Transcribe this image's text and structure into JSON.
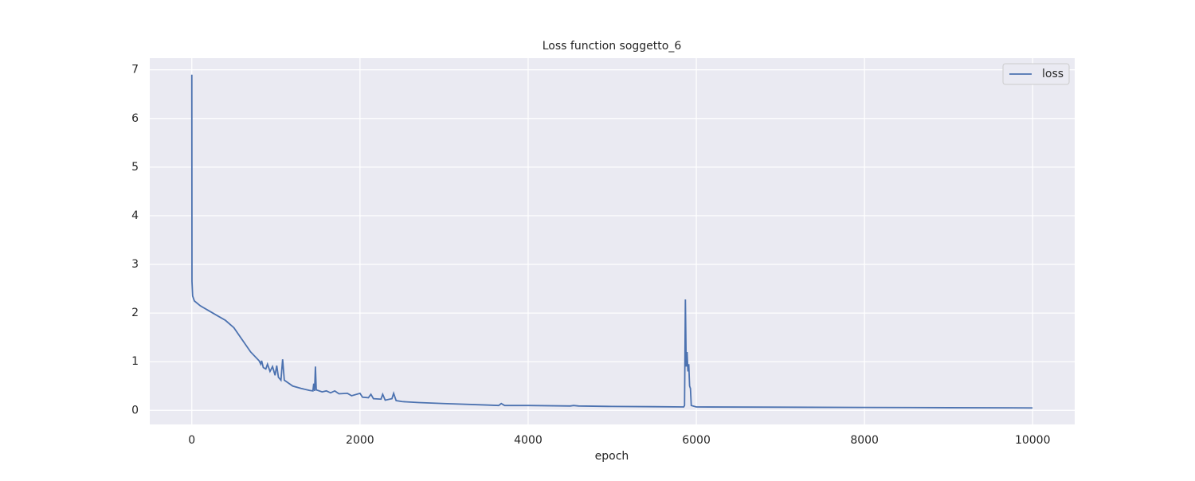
{
  "chart_data": {
    "type": "line",
    "title": "Loss function soggetto_6",
    "xlabel": "epoch",
    "x": [
      0,
      2,
      10,
      30,
      100,
      200,
      300,
      400,
      500,
      600,
      700,
      800,
      820,
      830,
      850,
      880,
      900,
      930,
      960,
      990,
      1010,
      1030,
      1060,
      1080,
      1100,
      1200,
      1300,
      1400,
      1440,
      1450,
      1460,
      1470,
      1480,
      1550,
      1600,
      1650,
      1700,
      1750,
      1850,
      1900,
      2000,
      2030,
      2100,
      2130,
      2160,
      2250,
      2270,
      2300,
      2380,
      2400,
      2430,
      2500,
      2700,
      3000,
      3500,
      3650,
      3680,
      3720,
      4000,
      4500,
      4540,
      4600,
      5000,
      5500,
      5850,
      5860,
      5870,
      5880,
      5890,
      5900,
      5910,
      5920,
      5930,
      5940,
      6000,
      7000,
      8000,
      9000,
      9999
    ],
    "series": [
      {
        "name": "loss",
        "color": "#4c72b0",
        "values": [
          6.9,
          2.65,
          2.35,
          2.25,
          2.15,
          2.05,
          1.95,
          1.85,
          1.7,
          1.45,
          1.2,
          1.02,
          0.95,
          1.02,
          0.88,
          0.85,
          0.95,
          0.8,
          0.9,
          0.72,
          0.92,
          0.68,
          0.62,
          1.05,
          0.62,
          0.5,
          0.45,
          0.41,
          0.4,
          0.55,
          0.4,
          0.9,
          0.42,
          0.38,
          0.4,
          0.36,
          0.4,
          0.34,
          0.35,
          0.3,
          0.35,
          0.27,
          0.26,
          0.33,
          0.24,
          0.23,
          0.33,
          0.21,
          0.24,
          0.35,
          0.2,
          0.18,
          0.16,
          0.14,
          0.11,
          0.1,
          0.14,
          0.1,
          0.1,
          0.09,
          0.1,
          0.09,
          0.08,
          0.075,
          0.07,
          0.1,
          2.28,
          0.9,
          1.2,
          0.8,
          0.95,
          0.5,
          0.45,
          0.1,
          0.07,
          0.065,
          0.06,
          0.055,
          0.05
        ]
      }
    ],
    "xlim": [
      -500,
      10500
    ],
    "ylim": [
      -0.29,
      7.24
    ],
    "xticks": [
      0,
      2000,
      4000,
      6000,
      8000,
      10000
    ],
    "yticks": [
      0,
      1,
      2,
      3,
      4,
      5,
      6,
      7
    ],
    "grid": true,
    "legend": "upper right"
  }
}
